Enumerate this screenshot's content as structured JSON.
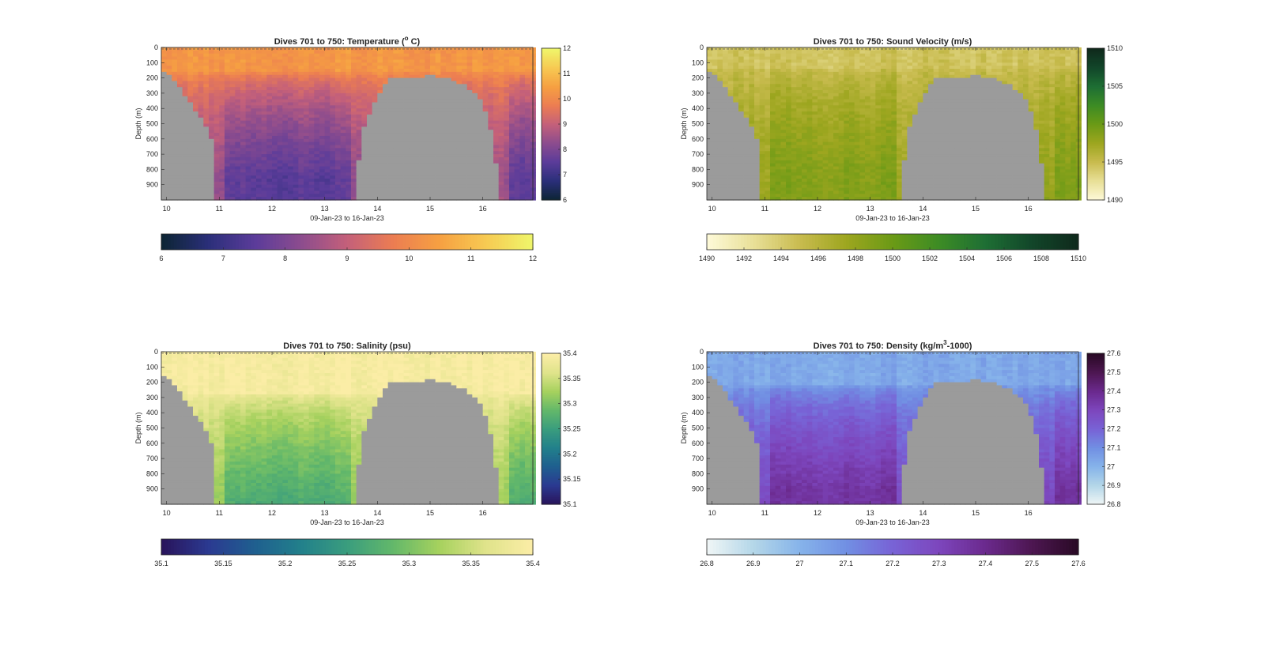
{
  "figure": {
    "background": "#ffffff",
    "land_color": "#9b9b9b"
  },
  "chart_data": [
    {
      "type": "heatmap",
      "variable": "temperature",
      "title": "Dives 701 to 750: Temperature (° C)",
      "title_parts": {
        "pre": "Dives 701 to 750: Temperature (",
        "sup": "o",
        "post": " C)"
      },
      "xlabel": "09-Jan-23 to 16-Jan-23",
      "ylabel": "Depth (m)",
      "xlim": [
        9.9,
        16.95
      ],
      "ylim": [
        0,
        1000
      ],
      "y_reversed": true,
      "xticks": [
        10,
        11,
        12,
        13,
        14,
        15,
        16
      ],
      "yticks": [
        0,
        100,
        200,
        300,
        400,
        500,
        600,
        700,
        800,
        900
      ],
      "clim": [
        6,
        12
      ],
      "colorbar_ticks": [
        "6",
        "7",
        "8",
        "9",
        "10",
        "11",
        "12"
      ],
      "horizontal_colorbar_ticks": [
        "6",
        "7",
        "8",
        "9",
        "10",
        "11",
        "12"
      ],
      "colormap": [
        "#0d2535",
        "#2b2f7a",
        "#5b3c9a",
        "#8c4c8e",
        "#c4607a",
        "#ec7d52",
        "#f6a042",
        "#f7c952",
        "#eff56a"
      ],
      "profile": {
        "surface": 10.3,
        "deep": 7.5,
        "deep_alt": 8.4,
        "mix_depth": 150
      }
    },
    {
      "type": "heatmap",
      "variable": "sound_velocity",
      "title": "Dives 701 to 750: Sound Velocity (m/s)",
      "title_parts": {
        "pre": "Dives 701 to 750: Sound Velocity (m/s)",
        "sup": "",
        "post": ""
      },
      "xlabel": "09-Jan-23 to 16-Jan-23",
      "ylabel": "Depth (m)",
      "xlim": [
        9.9,
        16.95
      ],
      "ylim": [
        0,
        1000
      ],
      "y_reversed": true,
      "xticks": [
        10,
        11,
        12,
        13,
        14,
        15,
        16
      ],
      "yticks": [
        0,
        100,
        200,
        300,
        400,
        500,
        600,
        700,
        800,
        900
      ],
      "clim": [
        1490,
        1510
      ],
      "colorbar_ticks": [
        "1490",
        "1495",
        "1500",
        "1505",
        "1510"
      ],
      "horizontal_colorbar_ticks": [
        "1490",
        "1492",
        "1494",
        "1496",
        "1498",
        "1500",
        "1502",
        "1504",
        "1506",
        "1508",
        "1510"
      ],
      "colormap": [
        "#fdf9d7",
        "#e8df96",
        "#c8bb4e",
        "#9da61f",
        "#6b9a16",
        "#3d8c24",
        "#1e6f34",
        "#12472a",
        "#0f2a1c"
      ],
      "profile": {
        "surface": 1494.5,
        "deep": 1498.8,
        "deep_alt": 1497.6,
        "mix_depth": 120
      }
    },
    {
      "type": "heatmap",
      "variable": "salinity",
      "title": "Dives 701 to 750: Salinity (psu)",
      "title_parts": {
        "pre": "Dives 701 to 750: Salinity (psu)",
        "sup": "",
        "post": ""
      },
      "xlabel": "09-Jan-23 to 16-Jan-23",
      "ylabel": "Depth (m)",
      "xlim": [
        9.9,
        16.95
      ],
      "ylim": [
        0,
        1000
      ],
      "y_reversed": true,
      "xticks": [
        10,
        11,
        12,
        13,
        14,
        15,
        16
      ],
      "yticks": [
        0,
        100,
        200,
        300,
        400,
        500,
        600,
        700,
        800,
        900
      ],
      "clim": [
        35.1,
        35.4
      ],
      "colorbar_ticks": [
        "35.1",
        "35.15",
        "35.2",
        "35.25",
        "35.3",
        "35.35",
        "35.4"
      ],
      "horizontal_colorbar_ticks": [
        "35.1",
        "35.15",
        "35.2",
        "35.25",
        "35.3",
        "35.35",
        "35.4"
      ],
      "colormap": [
        "#29155c",
        "#2b3a91",
        "#1f5f8f",
        "#22808b",
        "#3a9d7e",
        "#63b86a",
        "#a6d15e",
        "#dfe38a",
        "#fbeda6"
      ],
      "profile": {
        "surface": 35.395,
        "deep": 35.27,
        "deep_alt": 35.32,
        "mix_depth": 260
      }
    },
    {
      "type": "heatmap",
      "variable": "density",
      "title": "Dives 701 to 750: Density (kg/m³-1000)",
      "title_parts": {
        "pre": "Dives 701 to 750: Density (kg/m",
        "sup": "3",
        "post": "-1000)"
      },
      "xlabel": "09-Jan-23 to 16-Jan-23",
      "ylabel": "Depth (m)",
      "xlim": [
        9.9,
        16.95
      ],
      "ylim": [
        0,
        1000
      ],
      "y_reversed": true,
      "xticks": [
        10,
        11,
        12,
        13,
        14,
        15,
        16
      ],
      "yticks": [
        0,
        100,
        200,
        300,
        400,
        500,
        600,
        700,
        800,
        900
      ],
      "clim": [
        26.8,
        27.6
      ],
      "colorbar_ticks": [
        "26.8",
        "26.9",
        "27",
        "27.1",
        "27.2",
        "27.3",
        "27.4",
        "27.5",
        "27.6"
      ],
      "horizontal_colorbar_ticks": [
        "26.8",
        "26.9",
        "27",
        "27.1",
        "27.2",
        "27.3",
        "27.4",
        "27.5",
        "27.6"
      ],
      "colormap": [
        "#eef5f6",
        "#b3d6e8",
        "#86b3ea",
        "#718fe3",
        "#7863d6",
        "#7d46bd",
        "#6b2a8e",
        "#4e1753",
        "#2a0a26"
      ],
      "profile": {
        "surface": 27.03,
        "deep": 27.36,
        "deep_alt": 27.28,
        "mix_depth": 200
      }
    }
  ],
  "land_mask": {
    "x": [
      9.9,
      10.0,
      10.1,
      10.2,
      10.3,
      10.4,
      10.5,
      10.6,
      10.7,
      10.8,
      10.9,
      13.55,
      13.7,
      13.8,
      13.9,
      14.0,
      14.1,
      14.2,
      14.3,
      14.4,
      14.5,
      14.6,
      14.7,
      14.8,
      14.9,
      15.0,
      15.1,
      15.2,
      15.3,
      15.4,
      15.5,
      15.6,
      15.7,
      15.8,
      15.9,
      16.0,
      16.1,
      16.2,
      16.3
    ],
    "top_depth": [
      160,
      180,
      220,
      260,
      310,
      360,
      410,
      460,
      520,
      600,
      1000,
      730,
      520,
      430,
      360,
      290,
      240,
      200,
      190,
      200,
      200,
      195,
      190,
      190,
      185,
      185,
      190,
      195,
      205,
      215,
      230,
      245,
      270,
      300,
      340,
      420,
      530,
      760,
      1000
    ]
  }
}
